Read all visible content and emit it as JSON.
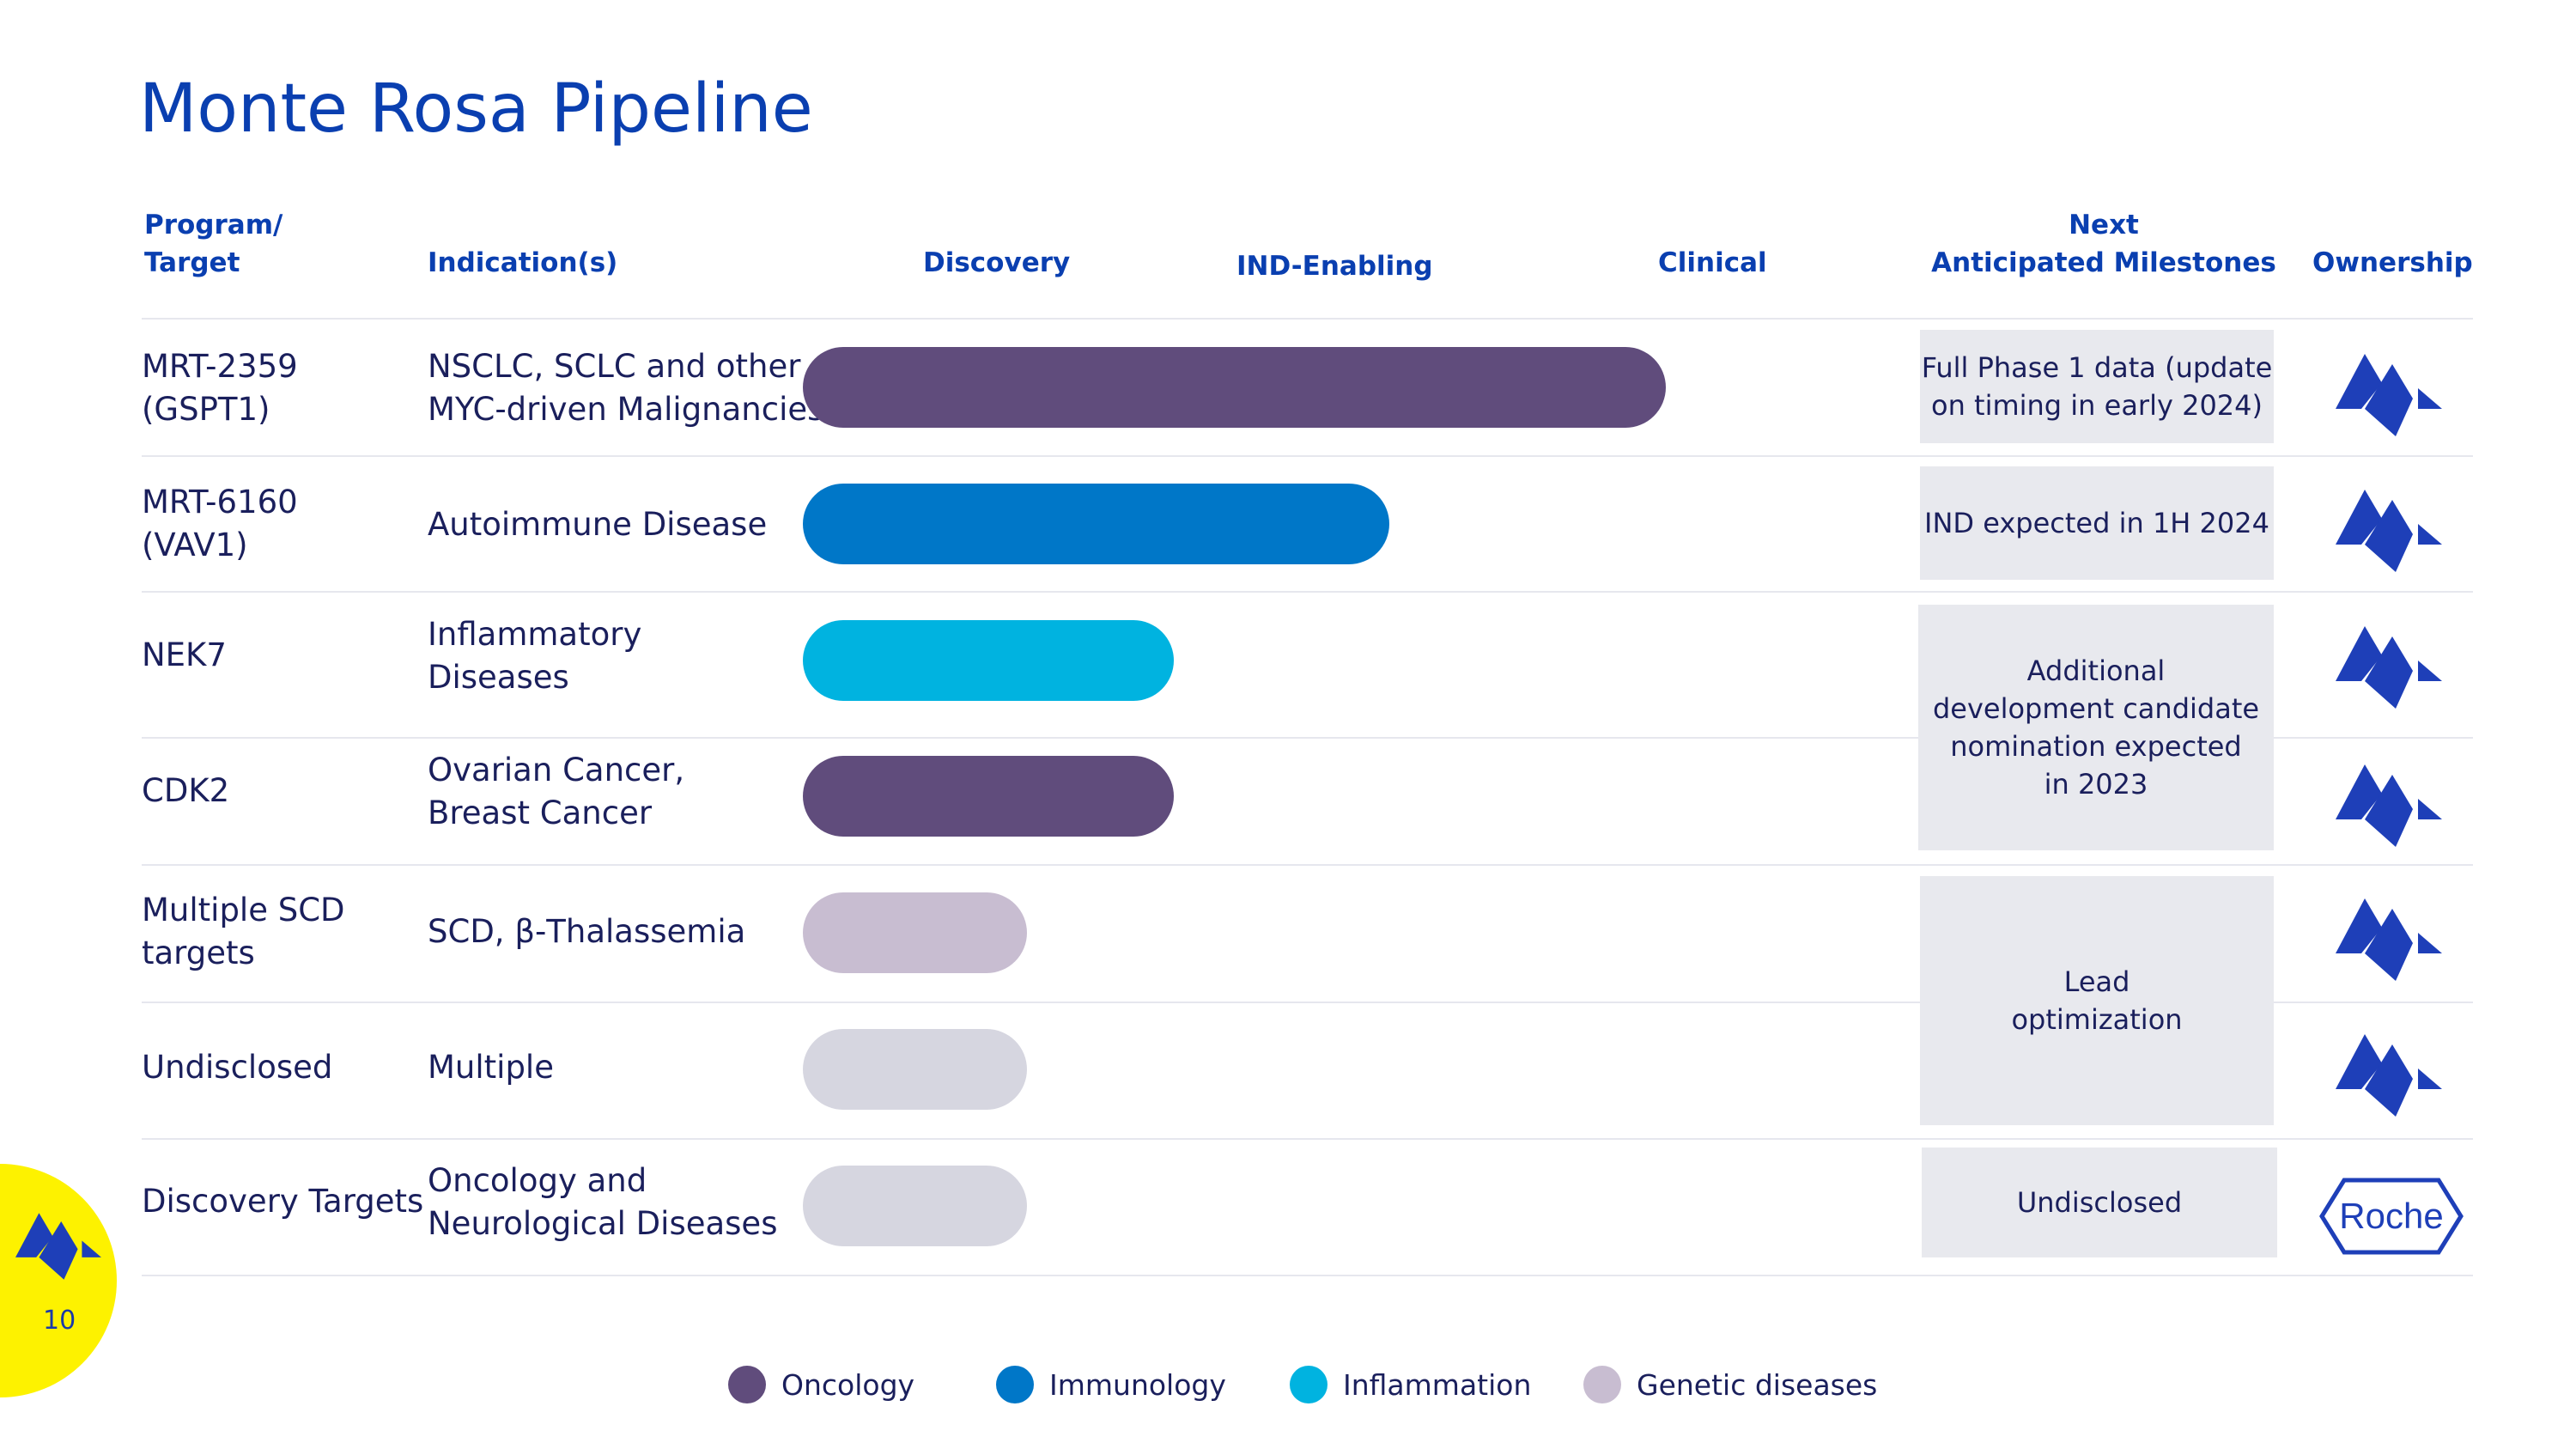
{
  "title": "Monte Rosa Pipeline",
  "headers": {
    "program_line1": "Program/",
    "program_line2": "Target",
    "indication": "Indication(s)",
    "discovery": "Discovery",
    "ind_enabling": "IND-Enabling",
    "clinical": "Clinical",
    "milestones_line1": "Next",
    "milestones_line2": "Anticipated Milestones",
    "ownership": "Ownership"
  },
  "rows": [
    {
      "program": [
        "MRT-2359",
        "(GSPT1)"
      ],
      "indication": [
        "NSCLC, SCLC and other",
        "MYC-driven Malignancies"
      ],
      "area": "Oncology",
      "stage_progress": 1.0,
      "owner": "monte-rosa"
    },
    {
      "program": [
        "MRT-6160",
        "(VAV1)"
      ],
      "indication": [
        "Autoimmune Disease"
      ],
      "area": "Immunology",
      "stage_progress": 0.68,
      "owner": "monte-rosa"
    },
    {
      "program": [
        "NEK7"
      ],
      "indication": [
        "Inflammatory",
        "Diseases"
      ],
      "area": "Inflammation",
      "stage_progress": 0.43,
      "owner": "monte-rosa"
    },
    {
      "program": [
        "CDK2"
      ],
      "indication": [
        "Ovarian Cancer,",
        "Breast Cancer"
      ],
      "area": "Oncology",
      "stage_progress": 0.43,
      "owner": "monte-rosa"
    },
    {
      "program": [
        "Multiple SCD",
        "targets"
      ],
      "indication": [
        "SCD, β-Thalassemia"
      ],
      "area": "Genetic diseases",
      "stage_progress": 0.26,
      "owner": "monte-rosa"
    },
    {
      "program": [
        "Undisclosed"
      ],
      "indication": [
        "Multiple"
      ],
      "area": "Undisclosed",
      "stage_progress": 0.26,
      "owner": "monte-rosa"
    },
    {
      "program": [
        "Discovery Targets"
      ],
      "indication": [
        "Oncology and",
        "Neurological Diseases"
      ],
      "area": "Undisclosed",
      "stage_progress": 0.26,
      "owner": "roche"
    }
  ],
  "milestones": [
    {
      "text": [
        "Full Phase 1 data (update",
        "on timing in early 2024)"
      ]
    },
    {
      "text": [
        "IND expected in 1H 2024"
      ]
    },
    {
      "text": [
        "Additional",
        "development candidate",
        "nomination expected",
        "in 2023"
      ]
    },
    {
      "text": [
        "Lead",
        "optimization"
      ]
    },
    {
      "text": [
        "Undisclosed"
      ]
    }
  ],
  "legend": [
    {
      "label": "Oncology",
      "color": "#604c7c"
    },
    {
      "label": "Immunology",
      "color": "#0077c8"
    },
    {
      "label": "Inflammation",
      "color": "#00b3e0"
    },
    {
      "label": "Genetic diseases",
      "color": "#c8bdd1"
    }
  ],
  "colors": {
    "Oncology": "#604c7c",
    "Immunology": "#0077c8",
    "Inflammation": "#00b3e0",
    "Genetic diseases": "#c8bdd1",
    "Undisclosed": "#d6d6e0",
    "brand_blue": "#0a3fb0",
    "badge_yellow": "#fdf200"
  },
  "ownership_icons": {
    "monte-rosa": "monte-rosa-logo-icon",
    "roche": "roche-logo-icon"
  },
  "roche_text": "Roche",
  "page_number": "10"
}
